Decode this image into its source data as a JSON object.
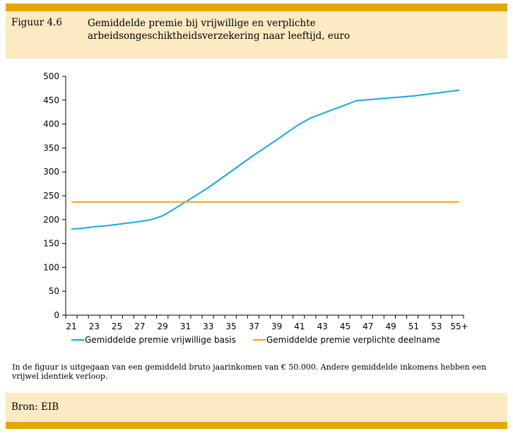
{
  "figure": {
    "label": "Figuur 4.6",
    "title": "Gemiddelde premie bij vrijwillige en verplichte arbeidsongeschiktheidsverzekering naar leeftijd, euro"
  },
  "note": "In de figuur is uitgegaan van een gemiddeld bruto jaarinkomen van € 50.000. Andere gemiddelde inkomens hebben een vrijwel identiek verloop.",
  "source": "Bron: EIB",
  "colors": {
    "accent_bar": "#e2a800",
    "panel": "#fbeac2",
    "series_voluntary": "#1ba7e0",
    "series_mandatory": "#f0a800"
  },
  "chart_data": {
    "type": "line",
    "x": [
      "21",
      "22",
      "23",
      "24",
      "25",
      "26",
      "27",
      "28",
      "29",
      "30",
      "31",
      "32",
      "33",
      "34",
      "35",
      "36",
      "37",
      "38",
      "39",
      "40",
      "41",
      "42",
      "43",
      "44",
      "45",
      "46",
      "47",
      "48",
      "49",
      "50",
      "51",
      "52",
      "53",
      "54",
      "55+"
    ],
    "xtick_labels": [
      "21",
      "23",
      "25",
      "27",
      "29",
      "31",
      "33",
      "35",
      "37",
      "39",
      "41",
      "43",
      "45",
      "47",
      "49",
      "51",
      "53",
      "55+"
    ],
    "yticks": [
      0,
      50,
      100,
      150,
      200,
      250,
      300,
      350,
      400,
      450,
      500
    ],
    "ylim": [
      0,
      500
    ],
    "series": [
      {
        "name": "Gemiddelde premie vrijwillige basis",
        "color": "#1ba7e0",
        "values": [
          180,
          182,
          185,
          187,
          190,
          193,
          196,
          200,
          208,
          222,
          237,
          252,
          267,
          284,
          301,
          318,
          335,
          351,
          367,
          384,
          400,
          413,
          422,
          431,
          440,
          449,
          451,
          453,
          455,
          457,
          459,
          462,
          465,
          468,
          471
        ]
      },
      {
        "name": "Gemiddelde premie verplichte deelname",
        "color": "#f0a800",
        "values": [
          237,
          237,
          237,
          237,
          237,
          237,
          237,
          237,
          237,
          237,
          237,
          237,
          237,
          237,
          237,
          237,
          237,
          237,
          237,
          237,
          237,
          237,
          237,
          237,
          237,
          237,
          237,
          237,
          237,
          237,
          237,
          237,
          237,
          237,
          237
        ]
      }
    ],
    "legend_position": "bottom",
    "grid": false
  }
}
